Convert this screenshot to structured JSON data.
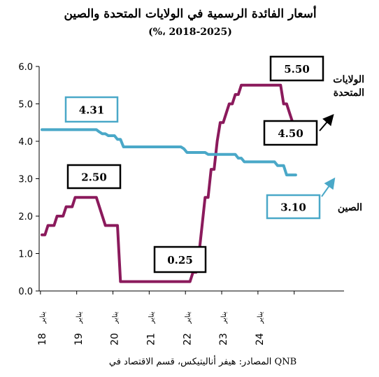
{
  "chart_data": {
    "type": "line",
    "title": "أسعار الفائدة الرسمية في الولايات المتحدة والصين",
    "subtitle": "(%، 2018-2025)",
    "source": "المصادر: هيفر أناليتيكس، قسم الاقتصاد في QNB",
    "ylim": [
      0,
      6
    ],
    "yticks": [
      "0.0",
      "1.0",
      "2.0",
      "3.0",
      "4.0",
      "5.0",
      "6.0"
    ],
    "x_month_label": "يناير",
    "x_years": [
      "18",
      "19",
      "20",
      "21",
      "22",
      "23",
      "24"
    ],
    "grid": false,
    "colors": {
      "us": "#8b1a5c",
      "china": "#4aa8c8"
    },
    "series": [
      {
        "key": "us",
        "name": "الولايات المتحدة",
        "x": [
          "2018-01",
          "2018-02",
          "2018-03",
          "2018-04",
          "2018-05",
          "2018-06",
          "2018-07",
          "2018-08",
          "2018-09",
          "2018-10",
          "2018-11",
          "2018-12",
          "2019-01",
          "2019-02",
          "2019-03",
          "2019-04",
          "2019-05",
          "2019-06",
          "2019-07",
          "2019-08",
          "2019-09",
          "2019-10",
          "2019-11",
          "2019-12",
          "2020-01",
          "2020-02",
          "2020-03",
          "2020-04",
          "2020-05",
          "2020-06",
          "2020-07",
          "2020-08",
          "2020-09",
          "2020-10",
          "2020-11",
          "2020-12",
          "2021-01",
          "2021-02",
          "2021-03",
          "2021-04",
          "2021-05",
          "2021-06",
          "2021-07",
          "2021-08",
          "2021-09",
          "2021-10",
          "2021-11",
          "2021-12",
          "2022-01",
          "2022-02",
          "2022-03",
          "2022-04",
          "2022-05",
          "2022-06",
          "2022-07",
          "2022-08",
          "2022-09",
          "2022-10",
          "2022-11",
          "2022-12",
          "2023-01",
          "2023-02",
          "2023-03",
          "2023-04",
          "2023-05",
          "2023-06",
          "2023-07",
          "2023-08",
          "2023-09",
          "2023-10",
          "2023-11",
          "2023-12",
          "2024-01",
          "2024-02",
          "2024-03",
          "2024-04",
          "2024-05",
          "2024-06",
          "2024-07",
          "2024-08",
          "2024-09",
          "2024-10",
          "2024-11",
          "2024-12",
          "2025-01"
        ],
        "values": [
          1.5,
          1.5,
          1.75,
          1.75,
          1.75,
          2.0,
          2.0,
          2.0,
          2.25,
          2.25,
          2.25,
          2.5,
          2.5,
          2.5,
          2.5,
          2.5,
          2.5,
          2.5,
          2.5,
          2.25,
          2.0,
          1.75,
          1.75,
          1.75,
          1.75,
          1.75,
          0.25,
          0.25,
          0.25,
          0.25,
          0.25,
          0.25,
          0.25,
          0.25,
          0.25,
          0.25,
          0.25,
          0.25,
          0.25,
          0.25,
          0.25,
          0.25,
          0.25,
          0.25,
          0.25,
          0.25,
          0.25,
          0.25,
          0.25,
          0.25,
          0.5,
          0.5,
          1.0,
          1.75,
          2.5,
          2.5,
          3.25,
          3.25,
          4.0,
          4.5,
          4.5,
          4.75,
          5.0,
          5.0,
          5.25,
          5.25,
          5.5,
          5.5,
          5.5,
          5.5,
          5.5,
          5.5,
          5.5,
          5.5,
          5.5,
          5.5,
          5.5,
          5.5,
          5.5,
          5.5,
          5.0,
          5.0,
          4.75,
          4.5,
          4.5
        ]
      },
      {
        "key": "china",
        "name": "الصين",
        "x": [
          "2018-01",
          "2018-02",
          "2018-03",
          "2018-04",
          "2018-05",
          "2018-06",
          "2018-07",
          "2018-08",
          "2018-09",
          "2018-10",
          "2018-11",
          "2018-12",
          "2019-01",
          "2019-02",
          "2019-03",
          "2019-04",
          "2019-05",
          "2019-06",
          "2019-07",
          "2019-08",
          "2019-09",
          "2019-10",
          "2019-11",
          "2019-12",
          "2020-01",
          "2020-02",
          "2020-03",
          "2020-04",
          "2020-05",
          "2020-06",
          "2020-07",
          "2020-08",
          "2020-09",
          "2020-10",
          "2020-11",
          "2020-12",
          "2021-01",
          "2021-02",
          "2021-03",
          "2021-04",
          "2021-05",
          "2021-06",
          "2021-07",
          "2021-08",
          "2021-09",
          "2021-10",
          "2021-11",
          "2021-12",
          "2022-01",
          "2022-02",
          "2022-03",
          "2022-04",
          "2022-05",
          "2022-06",
          "2022-07",
          "2022-08",
          "2022-09",
          "2022-10",
          "2022-11",
          "2022-12",
          "2023-01",
          "2023-02",
          "2023-03",
          "2023-04",
          "2023-05",
          "2023-06",
          "2023-07",
          "2023-08",
          "2023-09",
          "2023-10",
          "2023-11",
          "2023-12",
          "2024-01",
          "2024-02",
          "2024-03",
          "2024-04",
          "2024-05",
          "2024-06",
          "2024-07",
          "2024-08",
          "2024-09",
          "2024-10",
          "2024-11",
          "2024-12",
          "2025-01"
        ],
        "values": [
          4.31,
          4.31,
          4.31,
          4.31,
          4.31,
          4.31,
          4.31,
          4.31,
          4.31,
          4.31,
          4.31,
          4.31,
          4.31,
          4.31,
          4.31,
          4.31,
          4.31,
          4.31,
          4.31,
          4.25,
          4.2,
          4.2,
          4.15,
          4.15,
          4.15,
          4.05,
          4.05,
          3.85,
          3.85,
          3.85,
          3.85,
          3.85,
          3.85,
          3.85,
          3.85,
          3.85,
          3.85,
          3.85,
          3.85,
          3.85,
          3.85,
          3.85,
          3.85,
          3.85,
          3.85,
          3.85,
          3.85,
          3.8,
          3.7,
          3.7,
          3.7,
          3.7,
          3.7,
          3.7,
          3.7,
          3.65,
          3.65,
          3.65,
          3.65,
          3.65,
          3.65,
          3.65,
          3.65,
          3.65,
          3.65,
          3.55,
          3.55,
          3.45,
          3.45,
          3.45,
          3.45,
          3.45,
          3.45,
          3.45,
          3.45,
          3.45,
          3.45,
          3.45,
          3.35,
          3.35,
          3.35,
          3.1,
          3.1,
          3.1,
          3.1
        ]
      }
    ],
    "callouts": [
      {
        "label": "4.31",
        "series": "china"
      },
      {
        "label": "2.50",
        "series": "us"
      },
      {
        "label": "0.25",
        "series": "us"
      },
      {
        "label": "5.50",
        "series": "us"
      },
      {
        "label": "4.50",
        "series": "us"
      },
      {
        "label": "3.10",
        "series": "china"
      }
    ],
    "legend_labels": [
      {
        "lines": [
          "الولايات",
          "المتحدة"
        ],
        "series": "us"
      },
      {
        "lines": [
          "الصين"
        ],
        "series": "china"
      }
    ]
  }
}
